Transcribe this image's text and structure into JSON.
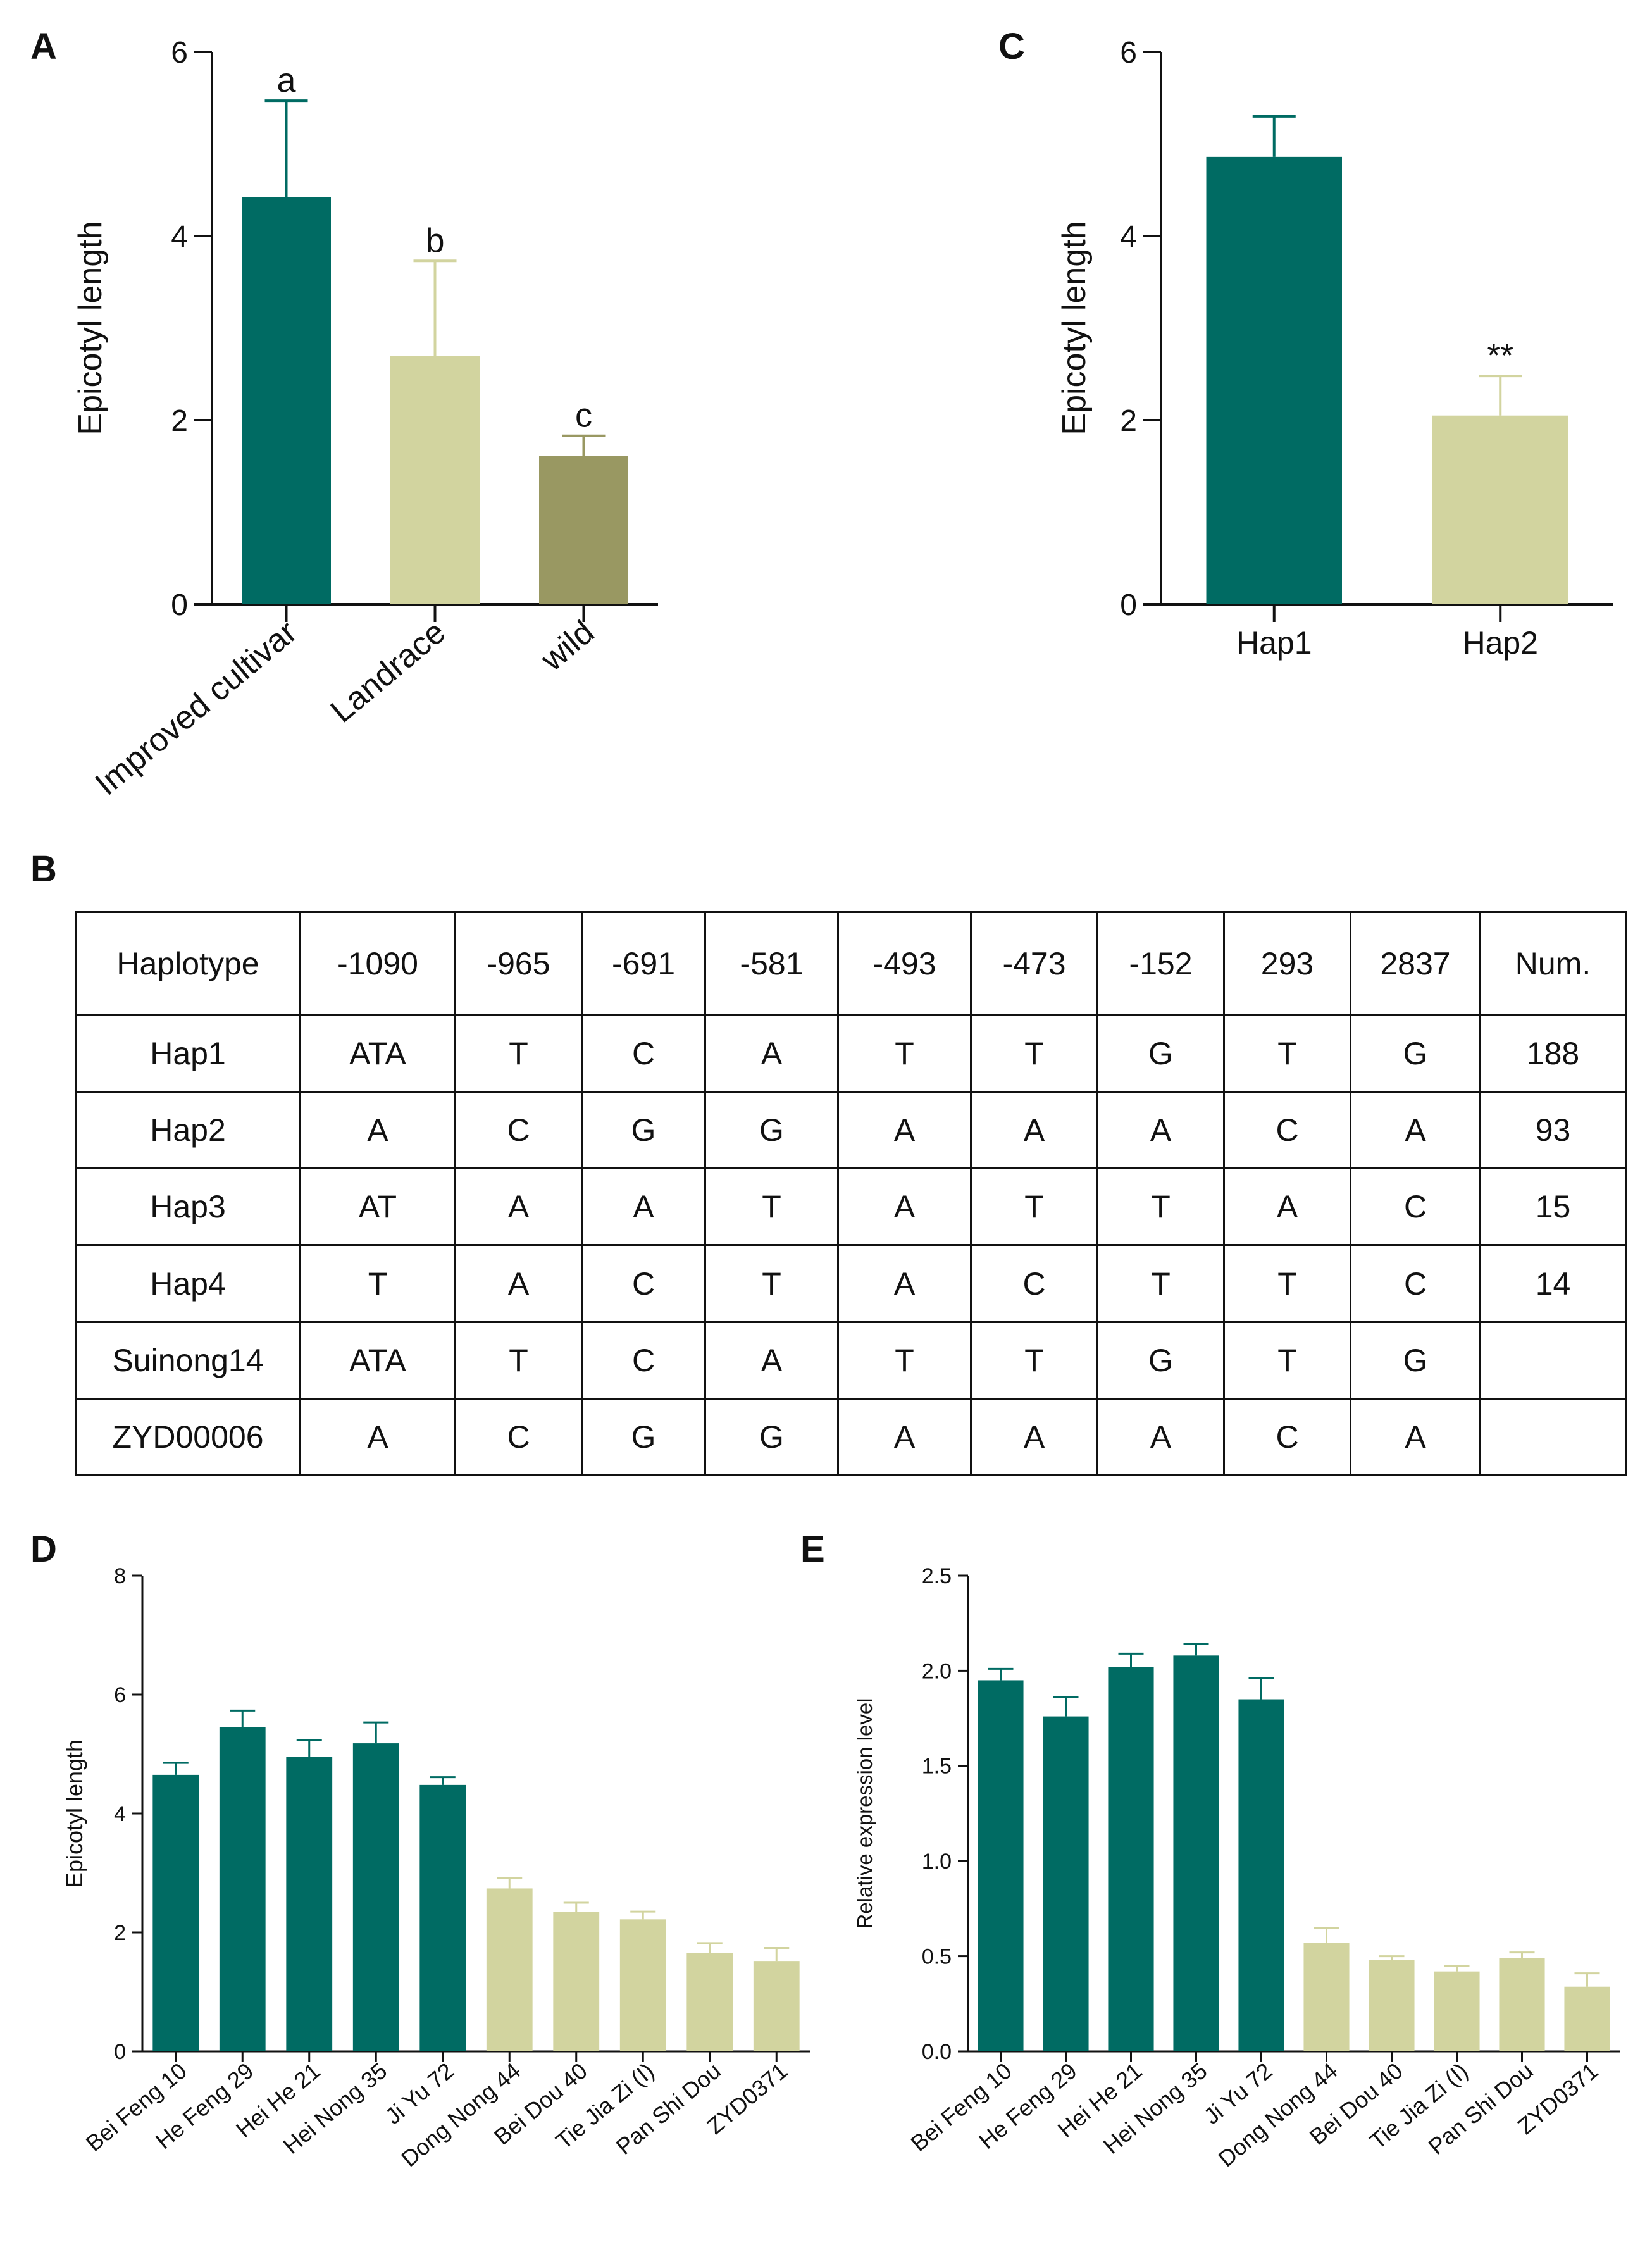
{
  "panels": {
    "A": "A",
    "B": "B",
    "C": "C",
    "D": "D",
    "E": "E"
  },
  "colors": {
    "dark_teal": "#006b63",
    "light_khaki": "#d2d49f",
    "olive": "#999862",
    "axis": "#111111"
  },
  "chart_data": [
    {
      "id": "A",
      "type": "bar",
      "title": "",
      "xlabel": "",
      "ylabel": "Epicotyl length",
      "ylim": [
        0,
        6
      ],
      "yticks": [
        "0",
        "2",
        "4",
        "6"
      ],
      "categories": [
        "Improved cultivar",
        "Landrace",
        "wild"
      ],
      "values": [
        4.42,
        2.7,
        1.61
      ],
      "errors": [
        1.05,
        1.03,
        0.22
      ],
      "annotations": [
        "a",
        "b",
        "c"
      ],
      "bar_colors": [
        "#006b63",
        "#d2d49f",
        "#999862"
      ],
      "grid": false
    },
    {
      "id": "C",
      "type": "bar",
      "title": "",
      "xlabel": "",
      "ylabel": "Epicotyl length",
      "ylim": [
        0,
        6
      ],
      "yticks": [
        "0",
        "2",
        "4",
        "6"
      ],
      "categories": [
        "Hap1",
        "Hap2"
      ],
      "values": [
        4.86,
        2.05
      ],
      "errors": [
        0.44,
        0.43
      ],
      "annotations": [
        "",
        "**"
      ],
      "bar_colors": [
        "#006b63",
        "#d2d49f"
      ],
      "grid": false
    },
    {
      "id": "D",
      "type": "bar",
      "title": "",
      "xlabel": "",
      "ylabel": "Epicotyl length",
      "ylim": [
        0,
        8
      ],
      "yticks": [
        "0",
        "2",
        "4",
        "6",
        "8"
      ],
      "categories": [
        "Bei Feng 10",
        "He Feng 29",
        "Hei He 21",
        "Hei Nong 35",
        "Ji Yu 72",
        "Dong Nong 44",
        "Bei Dou 40",
        "Tie Jia Zi (I)",
        "Pan Shi Dou",
        "ZYD0371"
      ],
      "values": [
        4.65,
        5.45,
        4.95,
        5.18,
        4.48,
        2.74,
        2.35,
        2.22,
        1.65,
        1.52
      ],
      "errors": [
        0.2,
        0.28,
        0.28,
        0.35,
        0.13,
        0.17,
        0.15,
        0.13,
        0.17,
        0.22
      ],
      "bar_colors": [
        "#006b63",
        "#006b63",
        "#006b63",
        "#006b63",
        "#006b63",
        "#d2d49f",
        "#d2d49f",
        "#d2d49f",
        "#d2d49f",
        "#d2d49f"
      ],
      "grid": false
    },
    {
      "id": "E",
      "type": "bar",
      "title": "",
      "xlabel": "",
      "ylabel": "Relative expression level",
      "ylim": [
        0,
        2.5
      ],
      "yticks": [
        "0.0",
        "0.5",
        "1.0",
        "1.5",
        "2.0",
        "2.5"
      ],
      "categories": [
        "Bei Feng 10",
        "He Feng 29",
        "Hei He 21",
        "Hei Nong 35",
        "Ji Yu 72",
        "Dong Nong 44",
        "Bei Dou 40",
        "Tie Jia Zi (I)",
        "Pan Shi Dou",
        "ZYD0371"
      ],
      "values": [
        1.95,
        1.76,
        2.02,
        2.08,
        1.85,
        0.57,
        0.48,
        0.42,
        0.49,
        0.34
      ],
      "errors": [
        0.06,
        0.1,
        0.07,
        0.06,
        0.11,
        0.08,
        0.02,
        0.03,
        0.03,
        0.07
      ],
      "bar_colors": [
        "#006b63",
        "#006b63",
        "#006b63",
        "#006b63",
        "#006b63",
        "#d2d49f",
        "#d2d49f",
        "#d2d49f",
        "#d2d49f",
        "#d2d49f"
      ],
      "grid": false
    }
  ],
  "table_B": {
    "header": [
      "Haplotype",
      "-1090",
      "-965",
      "-691",
      "-581",
      "-493",
      "-473",
      "-152",
      "293",
      "2837",
      "Num."
    ],
    "rows": [
      [
        "Hap1",
        "ATA",
        "T",
        "C",
        "A",
        "T",
        "T",
        "G",
        "T",
        "G",
        "188"
      ],
      [
        "Hap2",
        "A",
        "C",
        "G",
        "G",
        "A",
        "A",
        "A",
        "C",
        "A",
        "93"
      ],
      [
        "Hap3",
        "AT",
        "A",
        "A",
        "T",
        "A",
        "T",
        "T",
        "A",
        "C",
        "15"
      ],
      [
        "Hap4",
        "T",
        "A",
        "C",
        "T",
        "A",
        "C",
        "T",
        "T",
        "C",
        "14"
      ],
      [
        "Suinong14",
        "ATA",
        "T",
        "C",
        "A",
        "T",
        "T",
        "G",
        "T",
        "G",
        ""
      ],
      [
        "ZYD00006",
        "A",
        "C",
        "G",
        "G",
        "A",
        "A",
        "A",
        "C",
        "A",
        ""
      ]
    ]
  }
}
